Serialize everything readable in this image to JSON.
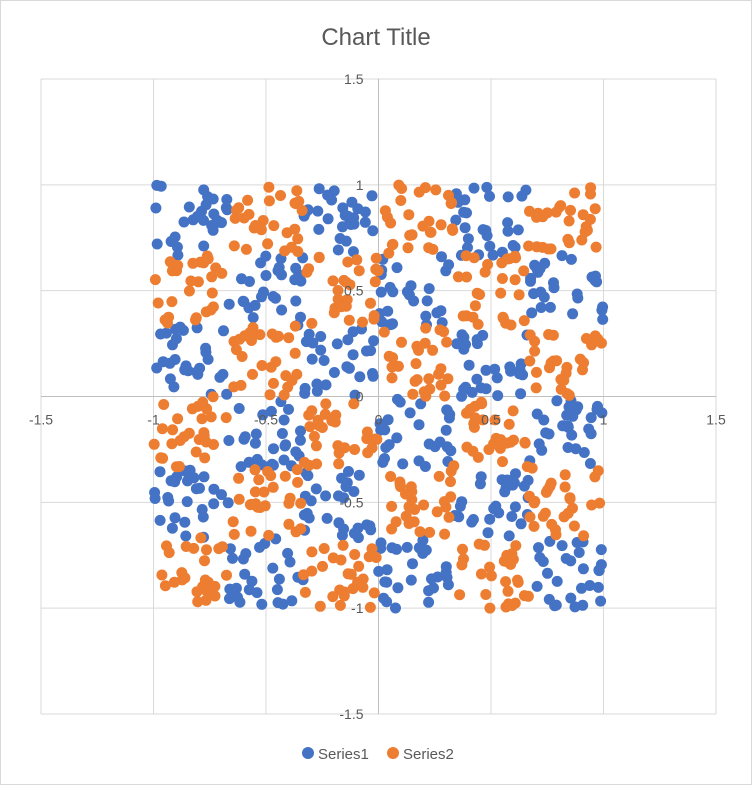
{
  "chart_data": {
    "type": "scatter",
    "title": "Chart Title",
    "xlabel": "",
    "ylabel": "",
    "xlim": [
      -1.5,
      1.5
    ],
    "ylim": [
      -1.5,
      1.5
    ],
    "x_ticks": [
      "-1.5",
      "-1",
      "-0.5",
      "0",
      "0.5",
      "1",
      "1.5"
    ],
    "y_ticks": [
      "-1.5",
      "-1",
      "-0.5",
      "0",
      "0.5",
      "1",
      "1.5"
    ],
    "grid": true,
    "legend_position": "bottom",
    "grid_cells_per_unit": 3,
    "points_per_cell": 28,
    "series": [
      {
        "name": "Series1",
        "color": "#4472C4",
        "cell_parity": "odd"
      },
      {
        "name": "Series2",
        "color": "#ED7D31",
        "cell_parity": "even"
      }
    ]
  }
}
